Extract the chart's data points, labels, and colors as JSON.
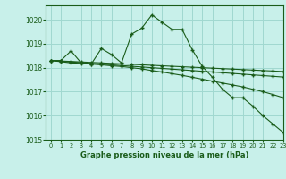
{
  "title": "Graphe pression niveau de la mer (hPa)",
  "bg_color": "#c8f0ea",
  "grid_color": "#a0d8d0",
  "line_color": "#1a5c1a",
  "ylim": [
    1015,
    1020.6
  ],
  "yticks": [
    1015,
    1016,
    1017,
    1018,
    1019,
    1020
  ],
  "xlim": [
    -0.5,
    23
  ],
  "xticks": [
    0,
    1,
    2,
    3,
    4,
    5,
    6,
    7,
    8,
    9,
    10,
    11,
    12,
    13,
    14,
    15,
    16,
    17,
    18,
    19,
    20,
    21,
    22,
    23
  ],
  "series1": [
    1018.3,
    1018.3,
    1018.7,
    1018.2,
    1018.15,
    1018.8,
    1018.55,
    1018.2,
    1019.4,
    1019.65,
    1020.2,
    1019.9,
    1019.6,
    1019.6,
    1018.75,
    1018.05,
    1017.6,
    1017.1,
    1016.75,
    1016.75,
    1016.4,
    1016.0,
    1015.65,
    1015.3
  ],
  "series2": [
    1018.3,
    1018.25,
    1018.2,
    1018.18,
    1018.15,
    1018.12,
    1018.08,
    1018.05,
    1018.0,
    1017.95,
    1017.88,
    1017.82,
    1017.75,
    1017.68,
    1017.6,
    1017.52,
    1017.44,
    1017.36,
    1017.28,
    1017.2,
    1017.1,
    1017.0,
    1016.88,
    1016.75
  ],
  "series3": [
    1018.3,
    1018.27,
    1018.24,
    1018.21,
    1018.18,
    1018.15,
    1018.12,
    1018.09,
    1018.06,
    1018.03,
    1018.0,
    1017.97,
    1017.94,
    1017.91,
    1017.88,
    1017.85,
    1017.82,
    1017.79,
    1017.76,
    1017.73,
    1017.7,
    1017.67,
    1017.64,
    1017.61
  ],
  "series4": [
    1018.3,
    1018.28,
    1018.26,
    1018.24,
    1018.22,
    1018.2,
    1018.18,
    1018.16,
    1018.14,
    1018.12,
    1018.1,
    1018.08,
    1018.06,
    1018.04,
    1018.02,
    1018.0,
    1017.98,
    1017.96,
    1017.94,
    1017.92,
    1017.9,
    1017.88,
    1017.86,
    1017.84
  ]
}
